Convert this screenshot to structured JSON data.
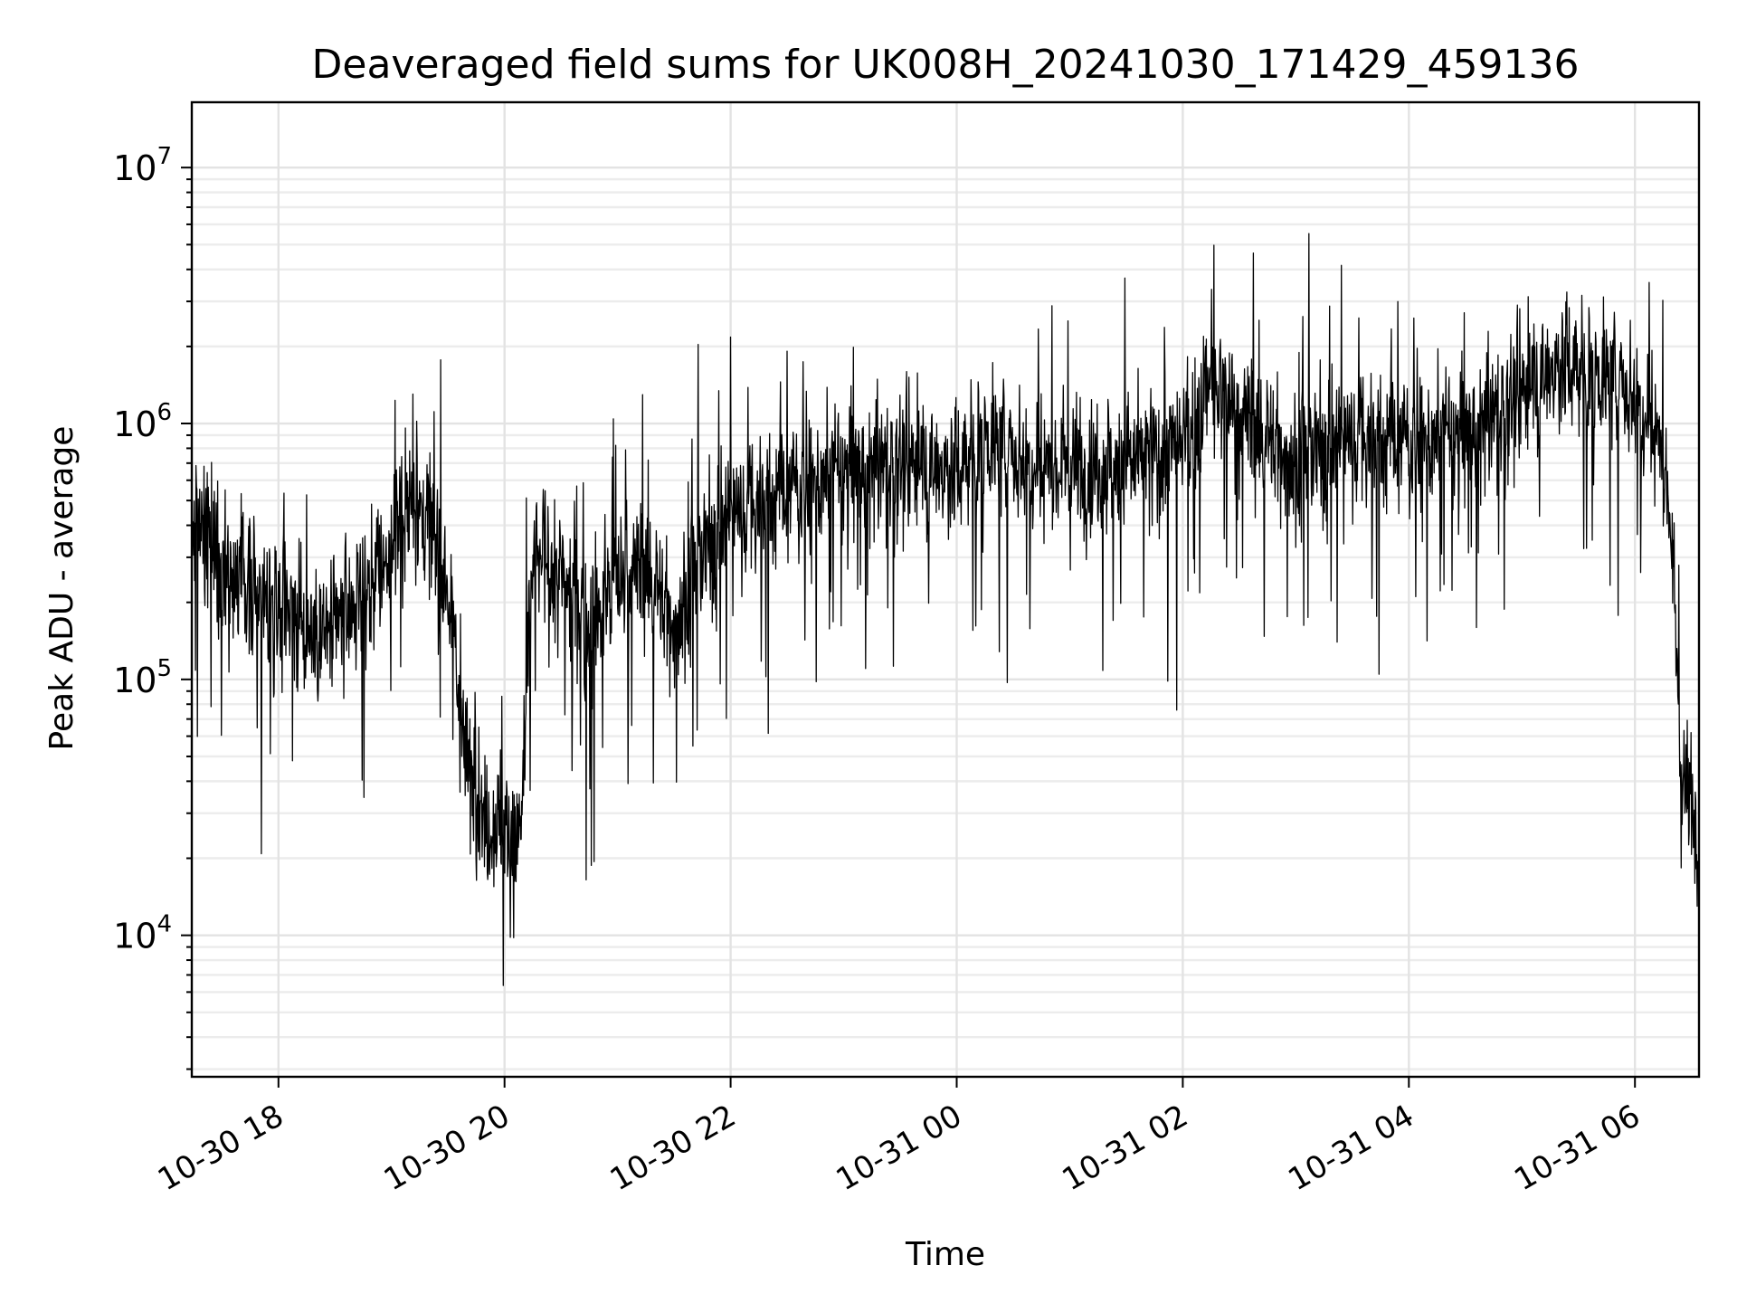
{
  "chart_data": {
    "type": "line",
    "title": "Deaveraged field sums for UK008H_20241030_171429_459136",
    "xlabel": "Time",
    "ylabel": "Peak ADU - average",
    "yscale": "log",
    "ylim": [
      2800,
      18000000
    ],
    "xlim": [
      "2024-10-30T17:14",
      "2024-10-31T06:34"
    ],
    "grid": true,
    "line_color": "#000000",
    "x_ticks": [
      {
        "at": "2024-10-30T18:00",
        "label": "10-30 18"
      },
      {
        "at": "2024-10-30T20:00",
        "label": "10-30 20"
      },
      {
        "at": "2024-10-30T22:00",
        "label": "10-30 22"
      },
      {
        "at": "2024-10-31T00:00",
        "label": "10-31 00"
      },
      {
        "at": "2024-10-31T02:00",
        "label": "10-31 02"
      },
      {
        "at": "2024-10-31T04:00",
        "label": "10-31 04"
      },
      {
        "at": "2024-10-31T06:00",
        "label": "10-31 06"
      }
    ],
    "y_ticks": [
      {
        "value": 10000,
        "base": "10",
        "exp": "4"
      },
      {
        "value": 100000,
        "base": "10",
        "exp": "5"
      },
      {
        "value": 1000000,
        "base": "10",
        "exp": "6"
      },
      {
        "value": 10000000,
        "base": "10",
        "exp": "7"
      }
    ],
    "series": [
      {
        "x": [
          "2024-10-30T17:14",
          "2024-10-30T17:30",
          "2024-10-30T17:45",
          "2024-10-30T18:00",
          "2024-10-30T18:15",
          "2024-10-30T18:30",
          "2024-10-30T18:45",
          "2024-10-30T19:00",
          "2024-10-30T19:10",
          "2024-10-30T19:20",
          "2024-10-30T19:30",
          "2024-10-30T19:40",
          "2024-10-30T19:50",
          "2024-10-30T20:00",
          "2024-10-30T20:08",
          "2024-10-30T20:15",
          "2024-10-30T20:30",
          "2024-10-30T20:45",
          "2024-10-30T21:00",
          "2024-10-30T21:15",
          "2024-10-30T21:30",
          "2024-10-30T21:35",
          "2024-10-30T21:45",
          "2024-10-30T22:00",
          "2024-10-30T22:30",
          "2024-10-30T23:00",
          "2024-10-30T23:30",
          "2024-10-31T00:00",
          "2024-10-31T00:15",
          "2024-10-31T00:30",
          "2024-10-31T01:00",
          "2024-10-31T01:30",
          "2024-10-31T02:00",
          "2024-10-31T02:15",
          "2024-10-31T02:30",
          "2024-10-31T03:00",
          "2024-10-31T03:30",
          "2024-10-31T04:00",
          "2024-10-31T04:30",
          "2024-10-31T05:00",
          "2024-10-31T05:20",
          "2024-10-31T05:40",
          "2024-10-31T06:00",
          "2024-10-31T06:10",
          "2024-10-31T06:18",
          "2024-10-31T06:25",
          "2024-10-31T06:34"
        ],
        "y": [
          400000,
          300000,
          230000,
          200000,
          170000,
          150000,
          220000,
          330000,
          500000,
          400000,
          250000,
          45000,
          30000,
          25000,
          22000,
          300000,
          250000,
          160000,
          240000,
          280000,
          160000,
          200000,
          300000,
          450000,
          550000,
          650000,
          700000,
          650000,
          900000,
          750000,
          700000,
          700000,
          800000,
          1400000,
          1100000,
          700000,
          900000,
          850000,
          900000,
          1300000,
          1700000,
          1600000,
          1300000,
          1050000,
          600000,
          40000,
          30000
        ]
      }
    ]
  }
}
